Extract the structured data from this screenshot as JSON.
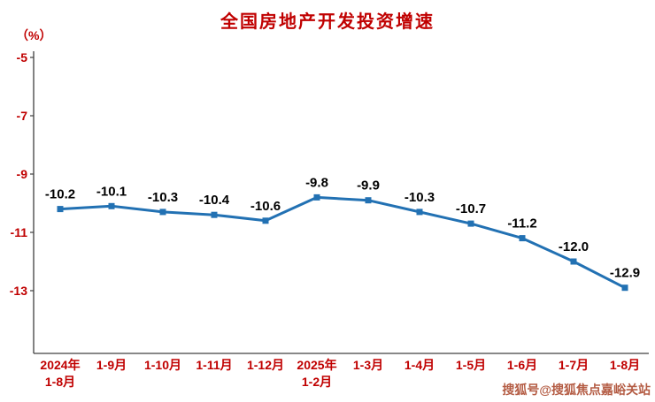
{
  "title": "全国房地产开发投资增速",
  "unit_label": "（%）",
  "watermark": "搜狐号@搜狐焦点嘉峪关站",
  "watermark_color": "#B0543A",
  "chart_data": {
    "type": "line",
    "title": "全国房地产开发投资增速",
    "ylabel": "（%）",
    "categories": [
      "2024年\n1-8月",
      "1-9月",
      "1-10月",
      "1-11月",
      "1-12月",
      "2025年\n1-2月",
      "1-3月",
      "1-4月",
      "1-5月",
      "1-6月",
      "1-7月",
      "1-8月"
    ],
    "values": [
      -10.2,
      -10.1,
      -10.3,
      -10.4,
      -10.6,
      -9.8,
      -9.9,
      -10.3,
      -10.7,
      -11.2,
      -12.0,
      -12.9
    ],
    "ylim": [
      -15,
      -5
    ],
    "yticks": [
      -5,
      -7,
      -9,
      -11,
      -13
    ],
    "grid": false,
    "legend": "none",
    "marker": "square",
    "line_color": "#2271B3",
    "data_label_color": "#000000",
    "axis_text_color": "#C00000",
    "axis_line_color": "#404040",
    "title_color": "#C00000"
  }
}
